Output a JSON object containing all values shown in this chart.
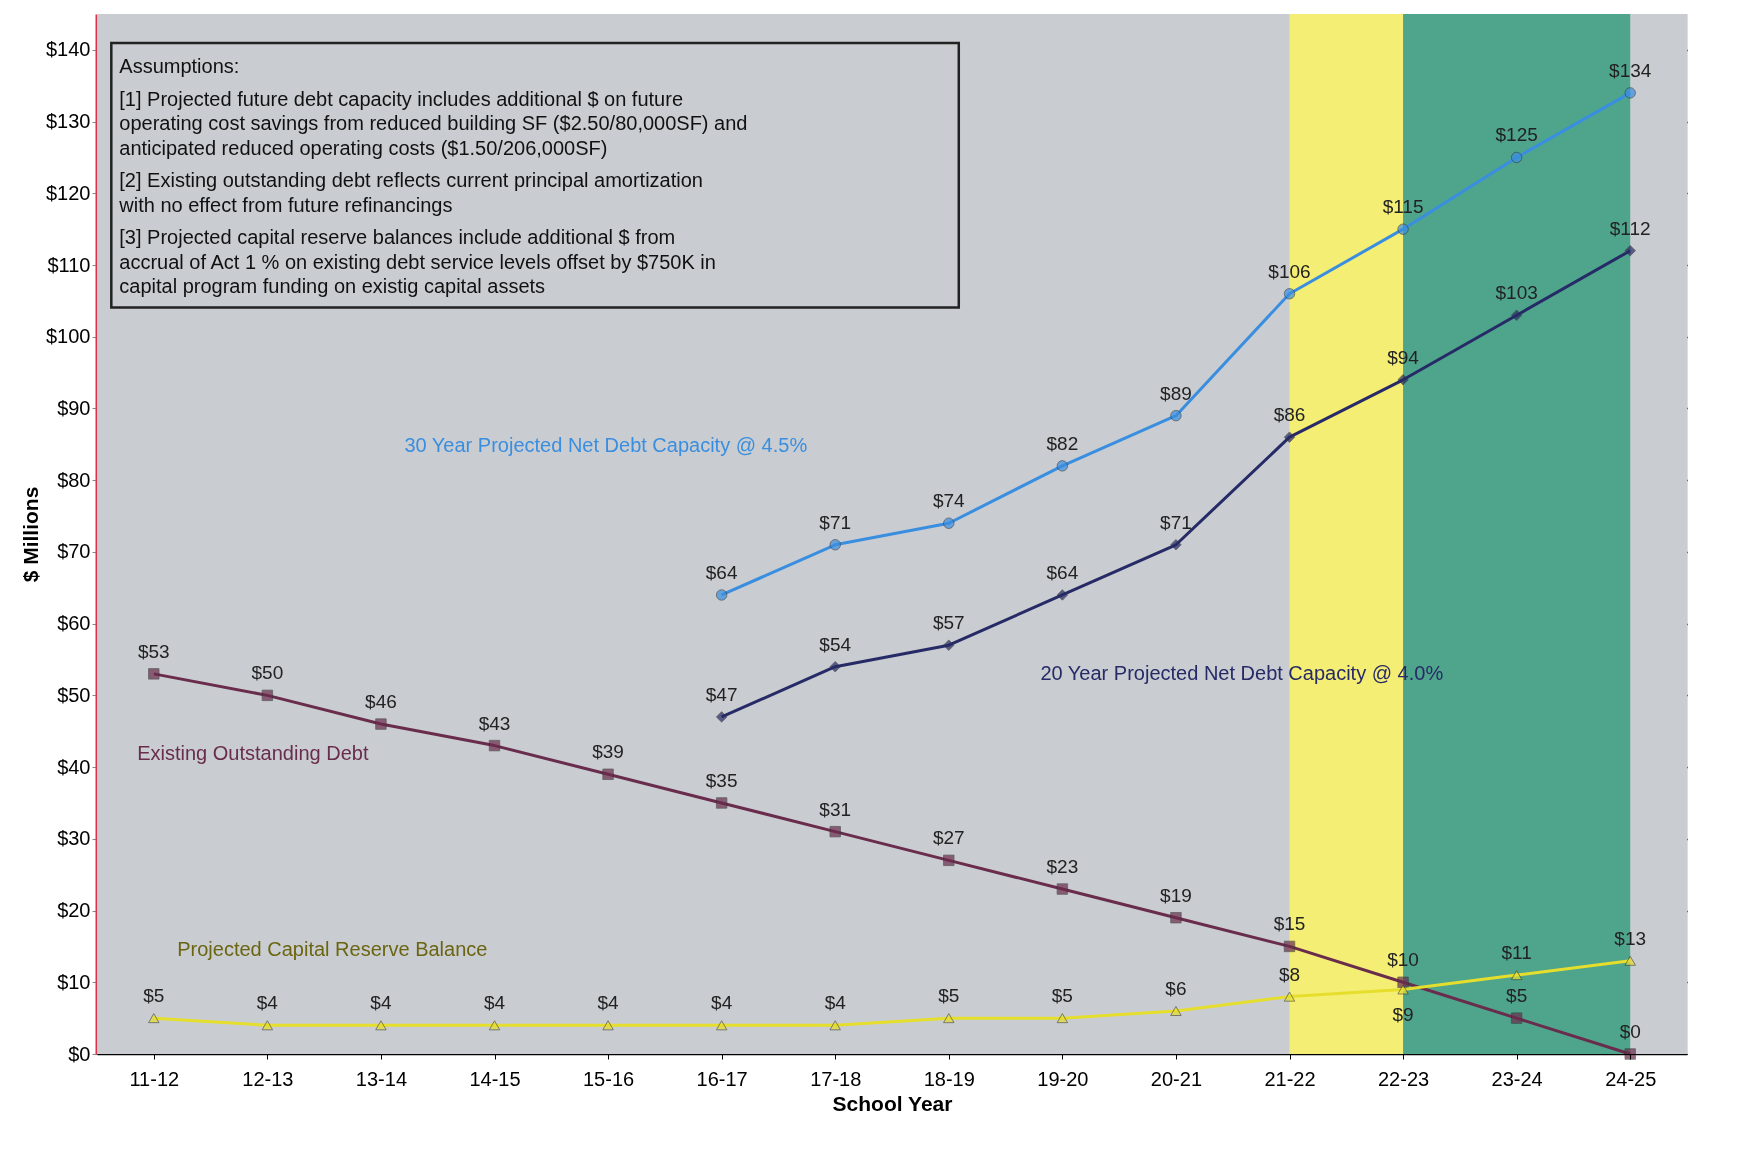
{
  "chart_data": {
    "type": "line",
    "xlabel": "School Year",
    "ylabel": "$ Millions",
    "categories": [
      "11-12",
      "12-13",
      "13-14",
      "14-15",
      "15-16",
      "16-17",
      "17-18",
      "18-19",
      "19-20",
      "20-21",
      "21-22",
      "22-23",
      "23-24",
      "24-25"
    ],
    "series": [
      {
        "name": "30 Year Projected Net Debt Capacity @ 4.5%",
        "color": "#3a8ee0",
        "marker": "circle",
        "values": [
          null,
          null,
          null,
          null,
          null,
          64,
          71,
          74,
          82,
          89,
          106,
          115,
          125,
          134
        ],
        "value_labels": [
          null,
          null,
          null,
          null,
          null,
          "$64",
          "$71",
          "$74",
          "$82",
          "$89",
          "$106",
          "$115",
          "$125",
          "$134"
        ]
      },
      {
        "name": "20 Year Projected Net Debt Capacity @ 4.0%",
        "color": "#262a66",
        "marker": "diamond",
        "values": [
          null,
          null,
          null,
          null,
          null,
          47,
          54,
          57,
          64,
          71,
          86,
          94,
          103,
          112
        ],
        "value_labels": [
          null,
          null,
          null,
          null,
          null,
          "$47",
          "$54",
          "$57",
          "$64",
          "$71",
          "$86",
          "$94",
          "$103",
          "$112"
        ]
      },
      {
        "name": "Existing Outstanding Debt",
        "color": "#6a2c4c",
        "marker": "square",
        "values": [
          53,
          50,
          46,
          43,
          39,
          35,
          31,
          27,
          23,
          19,
          15,
          10,
          5,
          0
        ],
        "value_labels": [
          "$53",
          "$50",
          "$46",
          "$43",
          "$39",
          "$35",
          "$31",
          "$27",
          "$23",
          "$19",
          "$15",
          "$10",
          "$5",
          "$0"
        ]
      },
      {
        "name": "Projected Capital Reserve Balance",
        "color": "#e6de2c",
        "marker": "triangle",
        "values": [
          5,
          4,
          4,
          4,
          4,
          4,
          4,
          5,
          5,
          6,
          8,
          9,
          11,
          13
        ],
        "value_labels": [
          "$5",
          "$4",
          "$4",
          "$4",
          "$4",
          "$4",
          "$4",
          "$5",
          "$5",
          "$6",
          "$8",
          "$9",
          "$11",
          "$13"
        ]
      }
    ],
    "ylim": [
      0,
      145
    ],
    "yticks": [
      {
        "value": 0,
        "label": "$0"
      },
      {
        "value": 10,
        "label": "$10"
      },
      {
        "value": 20,
        "label": "$20"
      },
      {
        "value": 30,
        "label": "$30"
      },
      {
        "value": 40,
        "label": "$40"
      },
      {
        "value": 50,
        "label": "$50"
      },
      {
        "value": 60,
        "label": "$60"
      },
      {
        "value": 70,
        "label": "$70"
      },
      {
        "value": 80,
        "label": "$80"
      },
      {
        "value": 90,
        "label": "$90"
      },
      {
        "value": 100,
        "label": "$100"
      },
      {
        "value": 110,
        "label": "$110"
      },
      {
        "value": 120,
        "label": "$120"
      },
      {
        "value": 130,
        "label": "$130"
      },
      {
        "value": 140,
        "label": "$140"
      }
    ],
    "bands": [
      {
        "axis": "x",
        "from": "21-22",
        "to": "22-23",
        "color": "#f5ee74"
      },
      {
        "axis": "x",
        "from": "22-23",
        "to": "24-25",
        "color": "#4fa58c"
      }
    ],
    "grid": "y",
    "annotations": [
      "Assumptions:",
      "[1] Projected future debt capacity includes additional $ on future operating cost savings from reduced building SF ($2.50/80,000SF) and anticipated reduced operating costs ($1.50/206,000SF)",
      "[2] Existing outstanding debt reflects current principal amortization with no effect from future refinancings",
      "[3] Projected capital reserve balances include additional $ from accrual of Act 1 % on existing debt service levels offset by $750K in capital program funding on existig capital assets"
    ]
  }
}
